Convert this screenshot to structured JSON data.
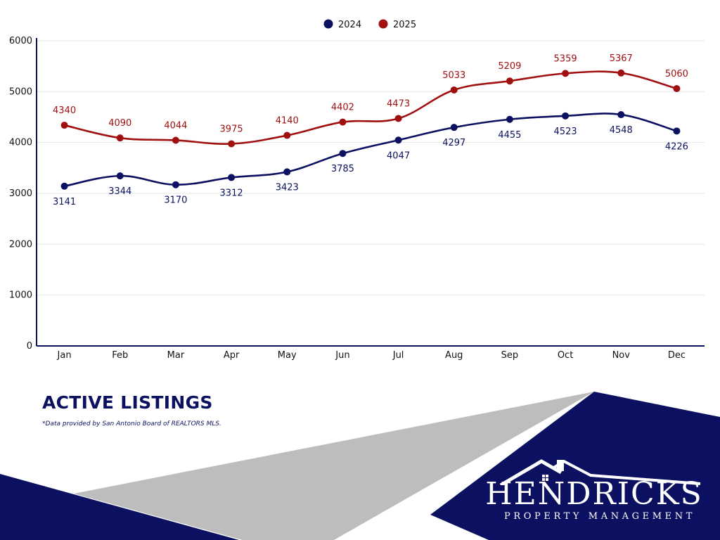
{
  "chart_data": {
    "type": "line",
    "title": "ACTIVE LISTINGS",
    "categories": [
      "Jan",
      "Feb",
      "Mar",
      "Apr",
      "May",
      "Jun",
      "Jul",
      "Aug",
      "Sep",
      "Oct",
      "Nov",
      "Dec"
    ],
    "series": [
      {
        "name": "2024",
        "color": "#0b1160",
        "values": [
          3141,
          3344,
          3170,
          3312,
          3423,
          3785,
          4047,
          4297,
          4455,
          4523,
          4548,
          4226
        ]
      },
      {
        "name": "2025",
        "color": "#a01010",
        "values": [
          4340,
          4090,
          4044,
          3975,
          4140,
          4402,
          4473,
          5033,
          5209,
          5359,
          5367,
          5060
        ]
      }
    ],
    "ylim": [
      0,
      6000
    ],
    "yticks": [
      0,
      1000,
      2000,
      3000,
      4000,
      5000,
      6000
    ],
    "xlabel": "",
    "ylabel": "",
    "grid": true,
    "legend": "top-center",
    "data_labels": true
  },
  "footer": {
    "source_note": "*Data provided by San Antonio Board of REALTORS MLS."
  },
  "logo": {
    "name": "HENDRICKS",
    "tagline": "PROPERTY MANAGEMENT"
  },
  "colors": {
    "navy": "#0b1160",
    "red": "#a01010",
    "gray": "#bdbdbd"
  }
}
